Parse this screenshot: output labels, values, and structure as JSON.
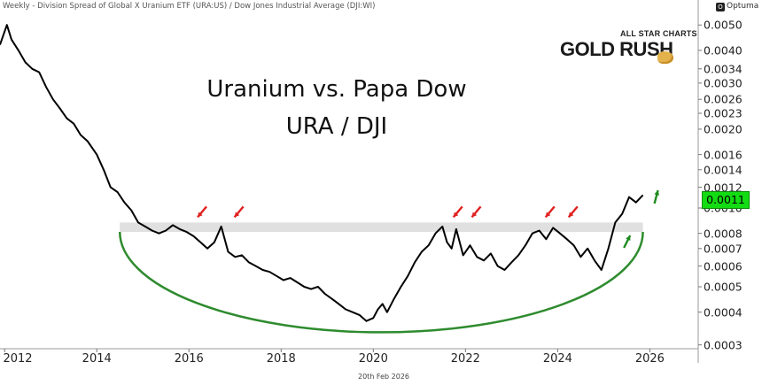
{
  "header": {
    "description": "Weekly - Division Spread of Global X Uranium ETF (URA:US) / Dow Jones Industrial Average (DJI:WI)",
    "brand": "Optuma"
  },
  "logo": {
    "line1": "ALL STAR CHARTS",
    "line2": "GOLD RUSH"
  },
  "footer": {
    "date": "20th Feb 2026"
  },
  "chart_data": {
    "type": "line",
    "title": "Uranium vs. Papa Dow",
    "subtitle": "URA / DJI",
    "yscale": "log",
    "ylim": [
      0.00029,
      0.0055
    ],
    "xlim": [
      2011.9,
      2027.05
    ],
    "x_ticks": [
      "2012",
      "2014",
      "2016",
      "2018",
      "2020",
      "2022",
      "2024",
      "2026"
    ],
    "y_ticks": [
      "0.0050",
      "0.0040",
      "0.0034",
      "0.0030",
      "0.0026",
      "0.0023",
      "0.0020",
      "0.0016",
      "0.0014",
      "0.0012",
      "0.0010",
      "0.0008",
      "0.0007",
      "0.0006",
      "0.0005",
      "0.0004",
      "0.0003"
    ],
    "last_value": "0.0011",
    "line_color": "#000000",
    "last_value_color": "#13dc13",
    "series": [
      {
        "x": [
          2011.9,
          2012.05,
          2012.15,
          2012.3,
          2012.45,
          2012.6,
          2012.75,
          2012.9,
          2013.05,
          2013.2,
          2013.35,
          2013.5,
          2013.65,
          2013.8,
          2014.0,
          2014.15,
          2014.3,
          2014.45,
          2014.6,
          2014.75,
          2014.9,
          2015.05,
          2015.2,
          2015.35,
          2015.5,
          2015.65,
          2015.8,
          2015.95,
          2016.1,
          2016.25,
          2016.4,
          2016.55,
          2016.7,
          2016.85,
          2017.0,
          2017.15,
          2017.3,
          2017.45,
          2017.6,
          2017.75,
          2017.9,
          2018.05,
          2018.2,
          2018.35,
          2018.5,
          2018.65,
          2018.8,
          2018.95,
          2019.1,
          2019.25,
          2019.4,
          2019.55,
          2019.7,
          2019.85,
          2020.0,
          2020.1,
          2020.2,
          2020.3,
          2020.45,
          2020.6,
          2020.75,
          2020.9,
          2021.05,
          2021.2,
          2021.35,
          2021.5,
          2021.6,
          2021.7,
          2021.8,
          2021.95,
          2022.1,
          2022.25,
          2022.4,
          2022.55,
          2022.7,
          2022.85,
          2023.0,
          2023.15,
          2023.3,
          2023.45,
          2023.6,
          2023.75,
          2023.9,
          2024.05,
          2024.2,
          2024.35,
          2024.5,
          2024.65,
          2024.8,
          2024.95,
          2025.1,
          2025.25,
          2025.4,
          2025.55,
          2025.7,
          2025.85
        ],
        "y": [
          0.0042,
          0.005,
          0.0044,
          0.004,
          0.0036,
          0.0034,
          0.0033,
          0.0029,
          0.0026,
          0.0024,
          0.0022,
          0.0021,
          0.0019,
          0.0018,
          0.0016,
          0.0014,
          0.0012,
          0.00115,
          0.00105,
          0.00098,
          0.00088,
          0.00085,
          0.00082,
          0.0008,
          0.00082,
          0.00086,
          0.00083,
          0.00081,
          0.00078,
          0.00074,
          0.0007,
          0.00074,
          0.00085,
          0.00068,
          0.00065,
          0.00066,
          0.00062,
          0.0006,
          0.00058,
          0.00057,
          0.00055,
          0.00053,
          0.00054,
          0.00052,
          0.0005,
          0.00049,
          0.0005,
          0.00047,
          0.00045,
          0.00043,
          0.00041,
          0.0004,
          0.00039,
          0.00037,
          0.00038,
          0.00041,
          0.00043,
          0.0004,
          0.00045,
          0.0005,
          0.00055,
          0.00062,
          0.00068,
          0.00072,
          0.0008,
          0.00085,
          0.00074,
          0.0007,
          0.00083,
          0.00066,
          0.00072,
          0.00065,
          0.00063,
          0.00067,
          0.0006,
          0.00058,
          0.00062,
          0.00066,
          0.00072,
          0.0008,
          0.00082,
          0.00076,
          0.00084,
          0.0008,
          0.00076,
          0.00072,
          0.00065,
          0.0007,
          0.00063,
          0.00058,
          0.0007,
          0.00088,
          0.00095,
          0.0011,
          0.00105,
          0.00112
        ]
      }
    ],
    "annotations": {
      "resistance_zone": {
        "y_low": 0.00081,
        "y_high": 0.00088,
        "x_start": 2014.5,
        "x_end": 2025.85,
        "color": "#dddddd"
      },
      "cup_arc": {
        "x_start": 2014.5,
        "x_end": 2025.85,
        "y_bottom": 0.000335,
        "color": "#2e8b2e"
      },
      "red_arrow_targets": [
        2016.15,
        2016.95,
        2021.7,
        2022.1,
        2023.7,
        2024.2
      ],
      "green_arrow_targets": [
        2025.4,
        2026.1
      ],
      "arrow_colors": {
        "red": "#e02020",
        "green": "#1e8a1e"
      }
    }
  }
}
